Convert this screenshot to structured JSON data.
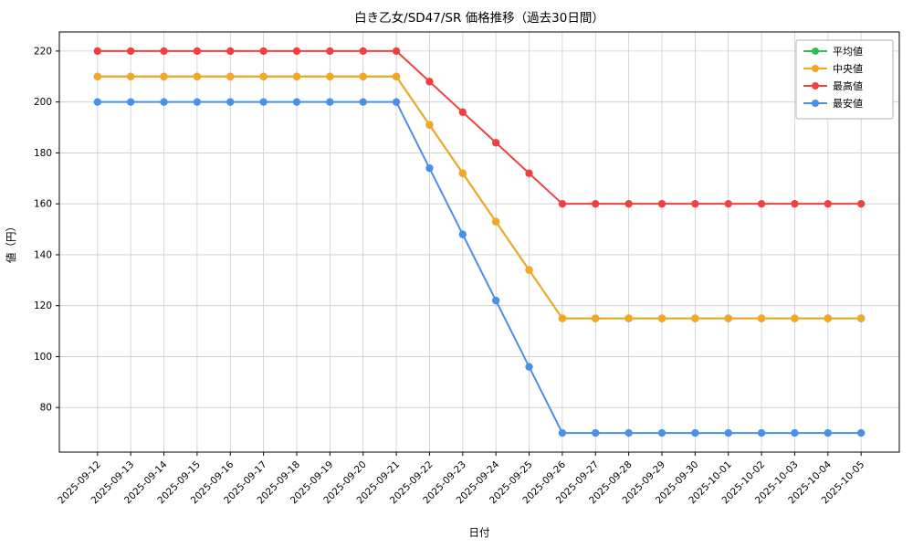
{
  "chart_data": {
    "type": "line",
    "title": "白き乙女/SD47/SR 価格推移（過去30日間）",
    "xlabel": "日付",
    "ylabel": "値（円）",
    "categories": [
      "2025-09-12",
      "2025-09-13",
      "2025-09-14",
      "2025-09-15",
      "2025-09-16",
      "2025-09-17",
      "2025-09-18",
      "2025-09-19",
      "2025-09-20",
      "2025-09-21",
      "2025-09-22",
      "2025-09-23",
      "2025-09-24",
      "2025-09-25",
      "2025-09-26",
      "2025-09-27",
      "2025-09-28",
      "2025-09-29",
      "2025-09-30",
      "2025-10-01",
      "2025-10-02",
      "2025-10-03",
      "2025-10-04",
      "2025-10-05"
    ],
    "series": [
      {
        "name": "平均値",
        "key": "average",
        "color": "#2fbe54",
        "values": [
          210,
          210,
          210,
          210,
          210,
          210,
          210,
          210,
          210,
          210,
          191,
          172,
          153,
          134,
          115,
          115,
          115,
          115,
          115,
          115,
          115,
          115,
          115,
          115
        ]
      },
      {
        "name": "中央値",
        "key": "median",
        "color": "#f5a623",
        "values": [
          210,
          210,
          210,
          210,
          210,
          210,
          210,
          210,
          210,
          210,
          191,
          172,
          153,
          134,
          115,
          115,
          115,
          115,
          115,
          115,
          115,
          115,
          115,
          115
        ]
      },
      {
        "name": "最高値",
        "key": "max",
        "color": "#f04141",
        "values": [
          220,
          220,
          220,
          220,
          220,
          220,
          220,
          220,
          220,
          220,
          208,
          196,
          184,
          172,
          160,
          160,
          160,
          160,
          160,
          160,
          160,
          160,
          160,
          160
        ]
      },
      {
        "name": "最安値",
        "key": "min",
        "color": "#4a90e8",
        "values": [
          200,
          200,
          200,
          200,
          200,
          200,
          200,
          200,
          200,
          200,
          174,
          148,
          122,
          96,
          70,
          70,
          70,
          70,
          70,
          70,
          70,
          70,
          70,
          70
        ]
      }
    ],
    "ylim": [
      62.5,
      227.5
    ],
    "yticks": [
      80,
      100,
      120,
      140,
      160,
      180,
      200,
      220
    ],
    "grid": true,
    "legend_position": "upper right"
  }
}
